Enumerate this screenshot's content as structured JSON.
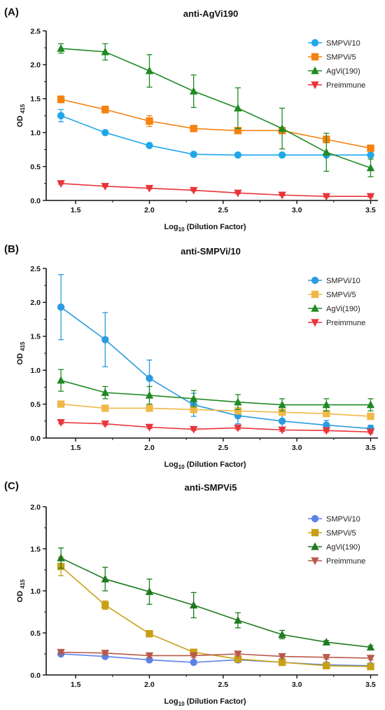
{
  "chart_data": [
    {
      "panel": "(A)",
      "type": "line",
      "title": "anti-AgVi190",
      "xlabel": "Log10 (Dilution Factor)",
      "ylabel": "OD 415",
      "xlim": [
        1.3,
        3.55
      ],
      "ylim": [
        0,
        2.5
      ],
      "xticks": [
        "1.5",
        "2.0",
        "2.5",
        "3.0",
        "3.5"
      ],
      "yticks": [
        "0.0",
        "0.5",
        "1.0",
        "1.5",
        "2.0",
        "2.5"
      ],
      "legend_position": "top-right",
      "x": [
        1.4,
        1.7,
        2.0,
        2.3,
        2.6,
        2.9,
        3.2,
        3.5
      ],
      "series": [
        {
          "name": "SMPVi/10",
          "marker": "circle",
          "color": "#1fa8e8",
          "values": [
            1.25,
            1.0,
            0.81,
            0.68,
            0.67,
            0.67,
            0.67,
            0.67
          ],
          "errors": [
            0.09,
            0.02,
            0.02,
            0.02,
            0.02,
            0.02,
            0.02,
            0.02
          ]
        },
        {
          "name": "SMPVi/5",
          "marker": "square",
          "color": "#f5820f",
          "values": [
            1.49,
            1.34,
            1.17,
            1.06,
            1.03,
            1.03,
            0.9,
            0.77
          ],
          "errors": [
            0.05,
            0.05,
            0.08,
            0.04,
            0.03,
            0.04,
            0.05,
            0.02
          ]
        },
        {
          "name": "AgVi(190)",
          "marker": "triangle-up",
          "color": "#1f8a24",
          "values": [
            2.24,
            2.19,
            1.91,
            1.61,
            1.36,
            1.06,
            0.71,
            0.48
          ],
          "errors": [
            0.07,
            0.12,
            0.24,
            0.24,
            0.3,
            0.3,
            0.28,
            0.13
          ]
        },
        {
          "name": "Preimmune",
          "marker": "triangle-down",
          "color": "#e8343a",
          "values": [
            0.25,
            0.21,
            0.18,
            0.15,
            0.11,
            0.08,
            0.06,
            0.06
          ],
          "errors": [
            0.01,
            0.01,
            0.01,
            0.01,
            0.01,
            0.01,
            0.01,
            0.01
          ]
        }
      ]
    },
    {
      "panel": "(B)",
      "type": "line",
      "title": "anti-SMPVi/10",
      "xlabel": "Log10 (Dilution Factor)",
      "ylabel": "OD 415",
      "xlim": [
        1.3,
        3.55
      ],
      "ylim": [
        0,
        2.5
      ],
      "xticks": [
        "1.5",
        "2.0",
        "2.5",
        "3.0",
        "3.5"
      ],
      "yticks": [
        "0.0",
        "0.5",
        "1.0",
        "1.5",
        "2.0",
        "2.5"
      ],
      "legend_position": "top-right",
      "x": [
        1.4,
        1.7,
        2.0,
        2.3,
        2.6,
        2.9,
        3.2,
        3.5
      ],
      "series": [
        {
          "name": "SMPVi/10",
          "marker": "circle",
          "color": "#2b9be0",
          "values": [
            1.93,
            1.45,
            0.88,
            0.49,
            0.33,
            0.25,
            0.19,
            0.14
          ],
          "errors": [
            0.48,
            0.4,
            0.27,
            0.17,
            0.12,
            0.1,
            0.07,
            0.05
          ]
        },
        {
          "name": "SMPVi/5",
          "marker": "square",
          "color": "#f0b848",
          "values": [
            0.5,
            0.44,
            0.44,
            0.42,
            0.4,
            0.38,
            0.36,
            0.32
          ],
          "errors": [
            0.03,
            0.03,
            0.03,
            0.03,
            0.03,
            0.03,
            0.03,
            0.03
          ]
        },
        {
          "name": "AgVi(190)",
          "marker": "triangle-up",
          "color": "#1f8a24",
          "values": [
            0.85,
            0.67,
            0.63,
            0.58,
            0.53,
            0.49,
            0.49,
            0.49
          ],
          "errors": [
            0.16,
            0.09,
            0.13,
            0.12,
            0.11,
            0.09,
            0.09,
            0.09
          ]
        },
        {
          "name": "Preimmune",
          "marker": "triangle-down",
          "color": "#e8343a",
          "values": [
            0.23,
            0.21,
            0.16,
            0.13,
            0.15,
            0.12,
            0.11,
            0.09
          ],
          "errors": [
            0.02,
            0.02,
            0.02,
            0.02,
            0.02,
            0.02,
            0.02,
            0.02
          ]
        }
      ]
    },
    {
      "panel": "(C)",
      "type": "line",
      "title": "anti-SMPVi5",
      "xlabel": "Log10 (Dilution Factor)",
      "ylabel": "OD 415",
      "xlim": [
        1.3,
        3.55
      ],
      "ylim": [
        0,
        2.0
      ],
      "xticks": [
        "1.5",
        "2.0",
        "2.5",
        "3.0",
        "3.5"
      ],
      "yticks": [
        "0.0",
        "0.5",
        "1.0",
        "1.5",
        "2.0"
      ],
      "legend_position": "top-right",
      "x": [
        1.4,
        1.7,
        2.0,
        2.3,
        2.6,
        2.9,
        3.2,
        3.5
      ],
      "series": [
        {
          "name": "SMPVi/10",
          "marker": "circle",
          "color": "#5b82e8",
          "values": [
            0.25,
            0.22,
            0.18,
            0.15,
            0.18,
            0.15,
            0.12,
            0.11
          ],
          "errors": [
            0.01,
            0.01,
            0.01,
            0.01,
            0.01,
            0.01,
            0.01,
            0.01
          ]
        },
        {
          "name": "SMPVi/5",
          "marker": "square",
          "color": "#c8a015",
          "values": [
            1.29,
            0.83,
            0.49,
            0.27,
            0.19,
            0.15,
            0.11,
            0.1
          ],
          "errors": [
            0.11,
            0.05,
            0.02,
            0.02,
            0.02,
            0.02,
            0.02,
            0.02
          ]
        },
        {
          "name": "AgVi(190)",
          "marker": "triangle-up",
          "color": "#1f7a1f",
          "values": [
            1.39,
            1.14,
            0.99,
            0.83,
            0.65,
            0.48,
            0.39,
            0.33
          ],
          "errors": [
            0.12,
            0.14,
            0.15,
            0.15,
            0.09,
            0.05,
            0.02,
            0.02
          ]
        },
        {
          "name": "Preimmune",
          "marker": "triangle-down",
          "color": "#b85a4a",
          "values": [
            0.27,
            0.26,
            0.23,
            0.23,
            0.25,
            0.22,
            0.21,
            0.2
          ],
          "errors": [
            0.02,
            0.02,
            0.02,
            0.02,
            0.02,
            0.02,
            0.02,
            0.02
          ]
        }
      ]
    }
  ]
}
